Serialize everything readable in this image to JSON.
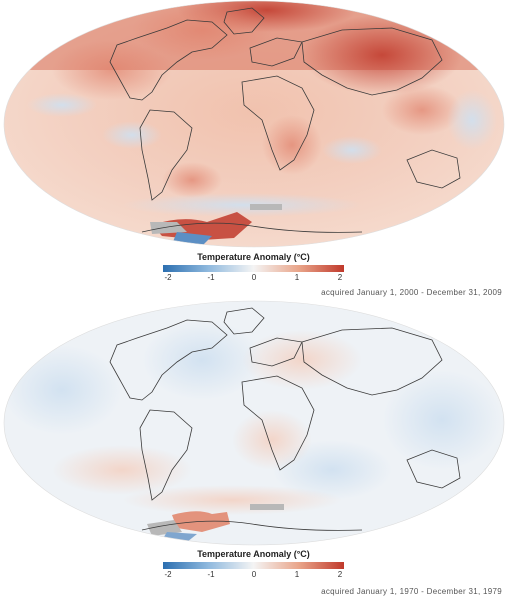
{
  "legend": {
    "title": "Temperature Anomaly (°C)",
    "ticks": [
      "-2",
      "-1",
      "0",
      "1",
      "2"
    ],
    "range": [
      -2,
      2
    ],
    "colors": [
      "#2c6fb0",
      "#8fb9de",
      "#f4f4f4",
      "#e9a58a",
      "#c0392b"
    ]
  },
  "panels": [
    {
      "caption": "acquired January 1, 2000 - December 31, 2009",
      "mean_anomaly": 0.55
    },
    {
      "caption": "acquired January 1, 1970 - December 31, 1979",
      "mean_anomaly": 0.05
    }
  ],
  "colors": {
    "warm": "#c0392b",
    "cool": "#2c6fb0",
    "neutral": "#f4f4f4",
    "nodata": "#b8b8b8",
    "coast": "#3a3a3a"
  }
}
